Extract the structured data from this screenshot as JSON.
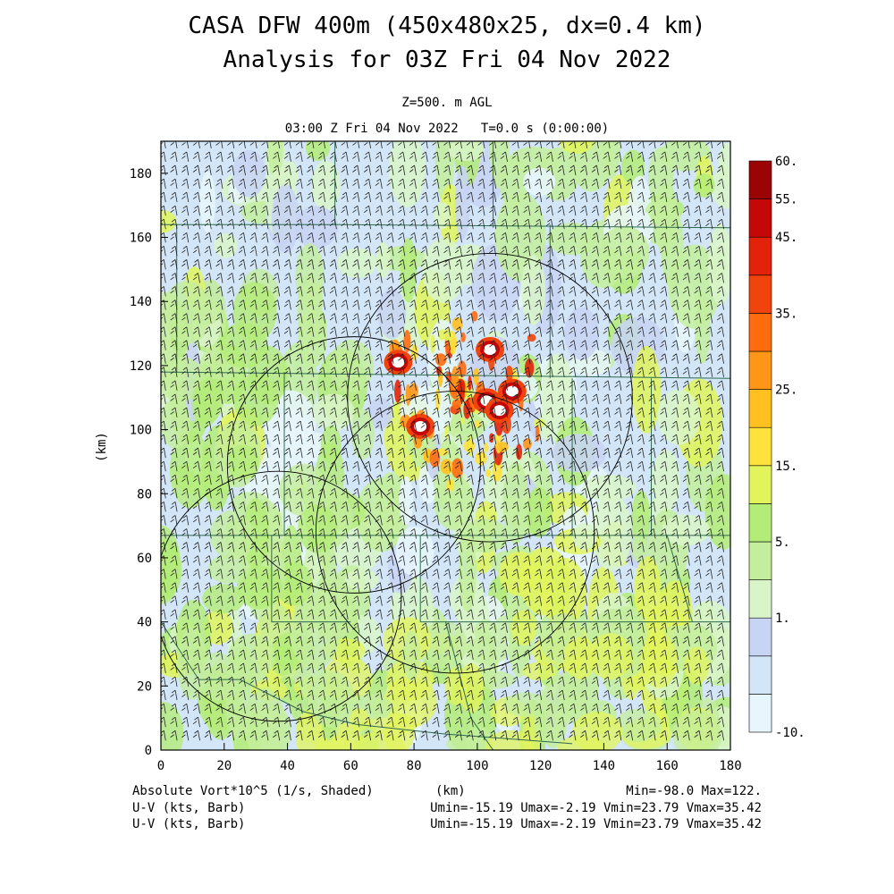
{
  "header": {
    "title_line1": "CASA DFW 400m (450x480x25, dx=0.4 km)",
    "title_line2": "Analysis for 03Z Fri 04 Nov 2022",
    "level": "Z=500. m AGL",
    "time": "03:00 Z Fri 04 Nov 2022   T=0.0 s (0:00:00)"
  },
  "footer": {
    "field1": "Absolute Vort*10^5 (1/s, Shaded)",
    "xunit": "(km)",
    "minmax": "Min=-98.0 Max=122.",
    "field2": "U-V (kts, Barb)",
    "stats2": "Umin=-15.19 Umax=-2.19 Vmin=23.79 Vmax=35.42",
    "field3": "U-V (kts, Barb)",
    "stats3": "Umin=-15.19 Umax=-2.19 Vmin=23.79 Vmax=35.42"
  },
  "colors": {
    "bands": [
      "#e6f6fc",
      "#d2e6f8",
      "#c8d4f4",
      "#d8f4c8",
      "#c4ee9e",
      "#b4ec78",
      "#e2f45c",
      "#ffe23c",
      "#ffc020",
      "#ff9618",
      "#ff6c10",
      "#f0440c",
      "#e2220a",
      "#c40808",
      "#9a0404"
    ],
    "barb": "#222222",
    "boundary": "#2e6a4e"
  },
  "chart_data": {
    "type": "heatmap",
    "field": "Absolute Vort*10^5 (1/s)",
    "xlabel": "(km)",
    "ylabel": "(km)",
    "xlim": [
      0,
      180
    ],
    "ylim": [
      0,
      190
    ],
    "xticks": [
      0,
      20,
      40,
      60,
      80,
      100,
      120,
      140,
      160,
      180
    ],
    "yticks": [
      0,
      20,
      40,
      60,
      80,
      100,
      120,
      140,
      160,
      180
    ],
    "colorbar_labels": [
      "-10.",
      "1.",
      "5.",
      "15.",
      "25.",
      "35.",
      "45.",
      "55.",
      "60."
    ],
    "value_range": {
      "min": -98.0,
      "max": 122.0
    },
    "wind_barb_stats": {
      "umin": -15.19,
      "umax": -2.19,
      "vmin": 23.79,
      "vmax": 35.42
    },
    "radar_rings": [
      {
        "x": 104,
        "y": 110,
        "r": 45
      },
      {
        "x": 61,
        "y": 89,
        "r": 40
      },
      {
        "x": 93,
        "y": 68,
        "r": 44
      },
      {
        "x": 37,
        "y": 48,
        "r": 39
      }
    ],
    "vorticity_maxima": [
      {
        "x": 103,
        "y": 109
      },
      {
        "x": 111,
        "y": 112
      },
      {
        "x": 104,
        "y": 125
      },
      {
        "x": 107,
        "y": 106
      },
      {
        "x": 82,
        "y": 101
      },
      {
        "x": 75,
        "y": 121
      }
    ]
  }
}
